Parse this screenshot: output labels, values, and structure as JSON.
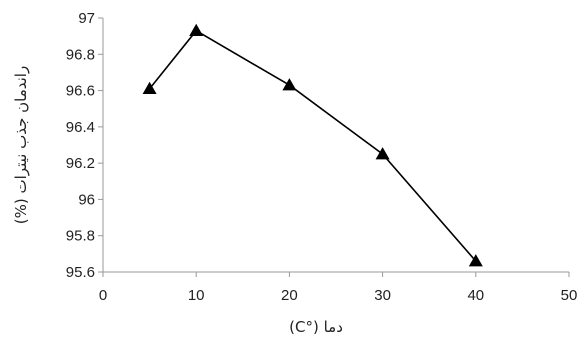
{
  "chart_data": {
    "type": "line",
    "xlabel": "دما (°C)",
    "ylabel": "راندمان جذب نیترات (%)",
    "xlim": [
      0,
      50
    ],
    "ylim": [
      95.6,
      97
    ],
    "x_ticks": [
      "0",
      "10",
      "20",
      "30",
      "40",
      "50"
    ],
    "y_ticks": [
      "95.6",
      "95.8",
      "96",
      "96.2",
      "96.4",
      "96.6",
      "96.8",
      "97"
    ],
    "grid": false,
    "marker": "triangle",
    "series": [
      {
        "x": [
          5,
          10,
          20,
          30,
          40
        ],
        "y": [
          96.61,
          96.93,
          96.63,
          96.25,
          95.66
        ]
      }
    ]
  }
}
